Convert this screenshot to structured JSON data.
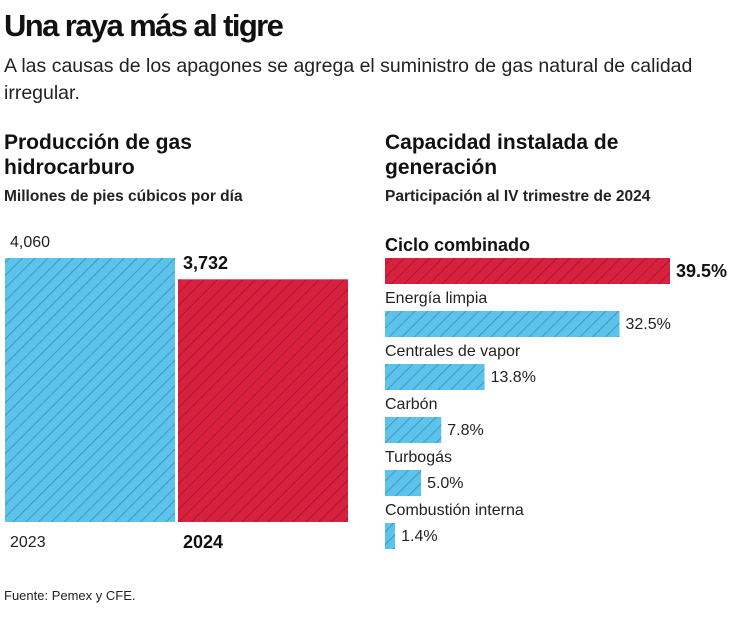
{
  "title": "Una raya más al tigre",
  "subtitle": "A las causas de los apagones se agrega el suministro de gas natural de calidad irregular.",
  "source": "Fuente: Pemex y CFE.",
  "chart_data": [
    {
      "type": "bar",
      "title": "Producción de gas hidrocarburo",
      "subtitle": "Millones de pies cúbicos por día",
      "categories": [
        "2023",
        "2024"
      ],
      "values": [
        4060,
        3732
      ],
      "value_labels": [
        "4,060",
        "3,732"
      ],
      "colors": [
        "#5bc3ec",
        "#d8203f"
      ]
    },
    {
      "type": "hbar",
      "title": "Capacidad instalada de generación",
      "subtitle": "Participación al IV trimestre de 2024",
      "categories": [
        "Ciclo combinado",
        "Energía limpia",
        "Centrales de vapor",
        "Carbón",
        "Turbogás",
        "Combustión interna"
      ],
      "values": [
        39.5,
        32.5,
        13.8,
        7.8,
        5.0,
        1.4
      ],
      "value_labels": [
        "39.5%",
        "32.5%",
        "13.8%",
        "7.8%",
        "5.0%",
        "1.4%"
      ],
      "colors": [
        "#d8203f",
        "#5bc3ec",
        "#5bc3ec",
        "#5bc3ec",
        "#5bc3ec",
        "#5bc3ec"
      ]
    }
  ]
}
